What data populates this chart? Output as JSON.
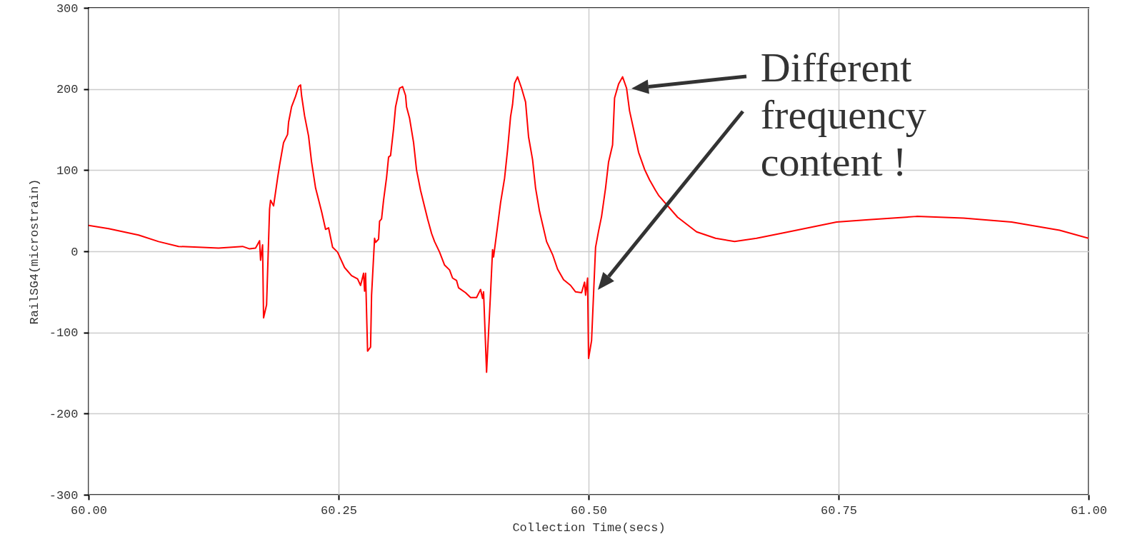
{
  "chart_data": {
    "type": "line",
    "xlabel": "Collection Time(secs)",
    "ylabel": "RailSG4(microstrain)",
    "xlim": [
      60,
      61
    ],
    "xticks": [
      {
        "value": 60,
        "label": "60.00"
      },
      {
        "value": 60.25,
        "label": "60.25"
      },
      {
        "value": 60.5,
        "label": "60.50"
      },
      {
        "value": 60.75,
        "label": "60.75"
      },
      {
        "value": 61,
        "label": "61.00"
      }
    ],
    "ylim": [
      -300,
      300
    ],
    "yticks": [
      -300,
      -200,
      -100,
      0,
      100,
      200,
      300
    ],
    "grid": true,
    "annotations": [
      "Different frequency content !"
    ],
    "series": [
      {
        "color": "#ff0000",
        "x": [
          60,
          60.02,
          60.05,
          60.07,
          60.09,
          60.11,
          60.13,
          60.154,
          60.161,
          60.167,
          60.171,
          60.172,
          60.174,
          60.175,
          60.178,
          60.181,
          60.182,
          60.185,
          60.189,
          60.191,
          60.195,
          60.199,
          60.2,
          60.203,
          60.207,
          60.21,
          60.212,
          60.213,
          60.216,
          60.22,
          60.223,
          60.227,
          60.233,
          60.237,
          60.24,
          60.244,
          60.249,
          60.256,
          60.263,
          60.269,
          60.272,
          60.275,
          60.276,
          60.277,
          60.279,
          60.282,
          60.283,
          60.286,
          60.287,
          60.29,
          60.291,
          60.293,
          60.295,
          60.298,
          60.3,
          60.302,
          60.305,
          60.307,
          60.311,
          60.314,
          60.317,
          60.318,
          60.321,
          60.325,
          60.328,
          60.332,
          60.336,
          60.339,
          60.343,
          60.346,
          60.351,
          60.356,
          60.361,
          60.364,
          60.368,
          60.37,
          60.377,
          60.382,
          60.388,
          60.392,
          60.394,
          60.395,
          60.398,
          60.399,
          60.402,
          60.404,
          60.405,
          60.409,
          60.412,
          60.416,
          60.419,
          60.422,
          60.424,
          60.426,
          60.429,
          60.433,
          60.437,
          60.44,
          60.444,
          60.447,
          60.451,
          60.458,
          60.464,
          60.469,
          60.475,
          60.482,
          60.487,
          60.493,
          60.496,
          60.497,
          60.499,
          60.5,
          60.503,
          60.507,
          60.51,
          60.513,
          60.517,
          60.52,
          60.524,
          60.526,
          60.53,
          60.534,
          60.538,
          60.541,
          60.546,
          60.55,
          60.556,
          60.561,
          60.567,
          60.57,
          60.589,
          60.608,
          60.627,
          60.646,
          60.668,
          60.7,
          60.748,
          60.78,
          60.828,
          60.875,
          60.923,
          60.971,
          61
        ],
        "values": [
          32,
          28,
          20,
          12,
          6,
          5,
          4,
          6,
          3,
          4,
          13,
          -11,
          8,
          -82,
          -66,
          52,
          63,
          56,
          90,
          106,
          134,
          144,
          159,
          178,
          191,
          203,
          205,
          192,
          167,
          142,
          110,
          78,
          49,
          27,
          29,
          5,
          -1,
          -20,
          -30,
          -34,
          -42,
          -27,
          -49,
          -27,
          -123,
          -118,
          -54,
          16,
          11,
          15,
          37,
          40,
          63,
          91,
          116,
          118,
          151,
          178,
          201,
          203,
          192,
          178,
          164,
          134,
          100,
          75,
          55,
          40,
          22,
          12,
          -1,
          -17,
          -23,
          -33,
          -36,
          -45,
          -51,
          -57,
          -57,
          -47,
          -58,
          -50,
          -149,
          -124,
          -51,
          2,
          -7,
          31,
          60,
          90,
          125,
          166,
          181,
          207,
          215,
          201,
          184,
          141,
          113,
          78,
          49,
          12,
          -4,
          -22,
          -35,
          -42,
          -50,
          -51,
          -38,
          -54,
          -33,
          -132,
          -110,
          5,
          25,
          43,
          78,
          110,
          131,
          189,
          206,
          215,
          201,
          173,
          145,
          122,
          101,
          88,
          75,
          69,
          42,
          24,
          16,
          12,
          16,
          24,
          36,
          39,
          43,
          41,
          36,
          26,
          16
        ]
      }
    ]
  }
}
